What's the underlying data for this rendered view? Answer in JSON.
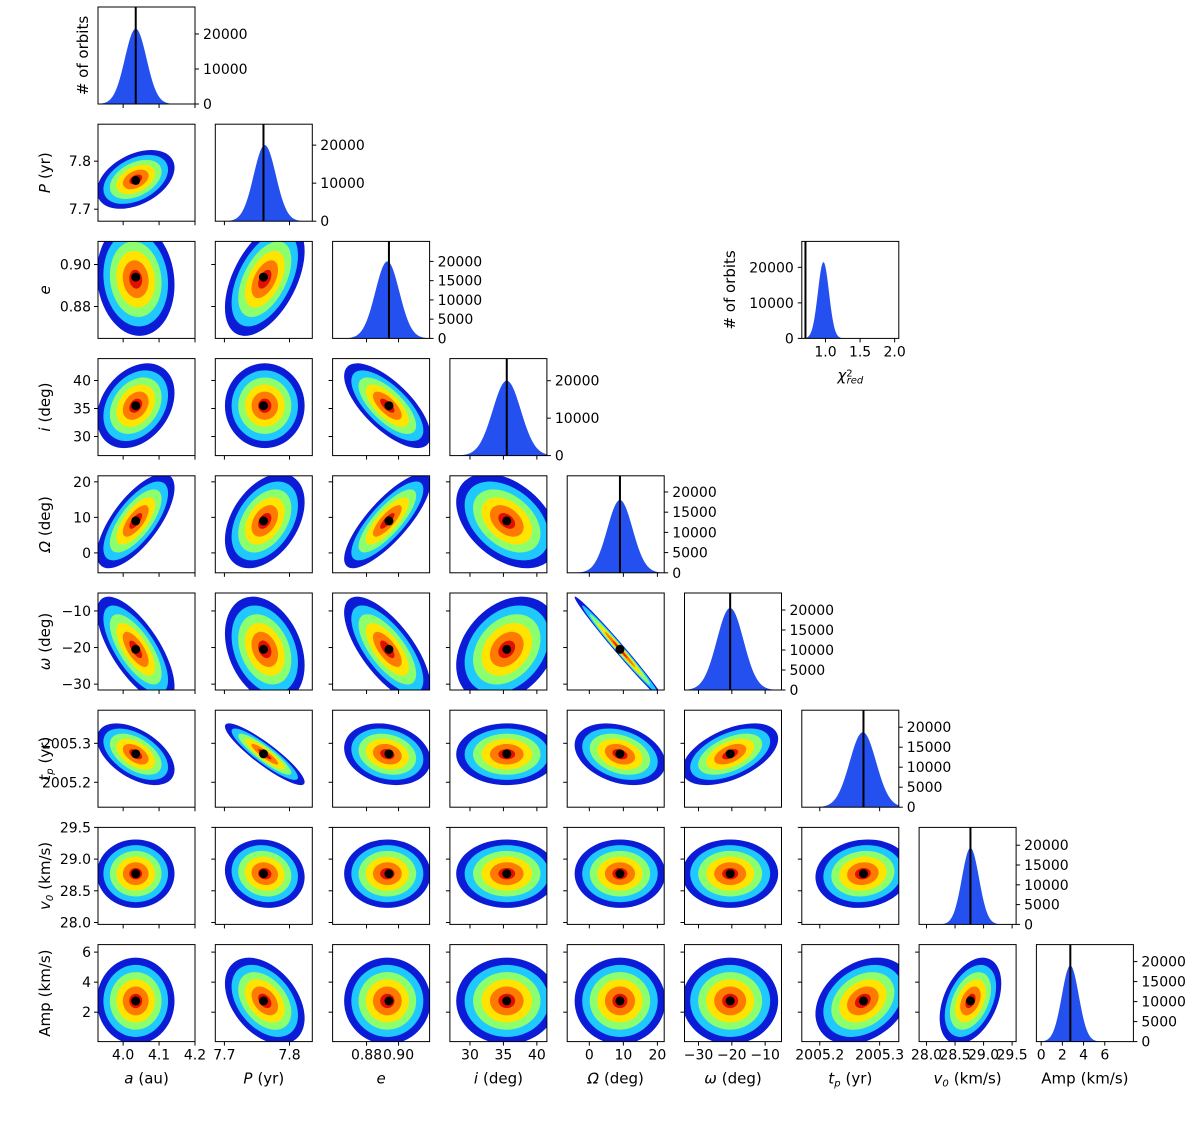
{
  "chart_data": {
    "type": "corner",
    "hist_ylabel": "# of orbits",
    "params": [
      {
        "symbol": "a",
        "unit": "(au)",
        "xlim": [
          3.93,
          4.2
        ],
        "ticks": [
          {
            "value": 4.0,
            "label": "4.0"
          },
          4.1,
          4.2
        ],
        "mean": 4.035,
        "std": 0.03,
        "best": 4.035,
        "peak": 21500,
        "hist_ylim": [
          0,
          27700
        ],
        "hist_yticks": [
          0,
          10000,
          20000
        ]
      },
      {
        "symbol": "P",
        "unit": "(yr)",
        "xlim": [
          7.686,
          7.835
        ],
        "ylim": [
          7.675,
          7.877
        ],
        "ticks": [
          7.7,
          7.8
        ],
        "mean": 7.762,
        "std": 0.017,
        "best": 7.76,
        "peak": 20000,
        "hist_ylim": [
          0,
          25500
        ],
        "hist_yticks": [
          0,
          10000,
          20000
        ]
      },
      {
        "symbol": "e",
        "xlim": [
          0.8588,
          0.9194
        ],
        "ylim": [
          0.8648,
          0.911
        ],
        "ticks": [
          0.88,
          {
            "value": 0.9,
            "label": "0.90"
          }
        ],
        "mean": 0.893,
        "std": 0.0075,
        "best": 0.894,
        "peak": 20000,
        "hist_ylim": [
          0,
          25200
        ],
        "hist_yticks": [
          0,
          5000,
          10000,
          15000,
          20000
        ]
      },
      {
        "symbol": "i",
        "unit": "(deg)",
        "xlim": [
          27.0,
          41.5
        ],
        "ylim": [
          26.6,
          43.9
        ],
        "ticks": [
          30,
          35,
          40
        ],
        "mean": 35.5,
        "std": 2.1,
        "best": 35.5,
        "peak": 20000,
        "hist_ylim": [
          0,
          25900
        ],
        "hist_yticks": [
          0,
          10000,
          20000
        ]
      },
      {
        "symbol": "Ω",
        "unit": "(deg)",
        "xlim": [
          -6.5,
          22
        ],
        "ylim": [
          -5.6,
          21.7
        ],
        "ticks": [
          0,
          10,
          20
        ],
        "mean": 9,
        "std": 3.7,
        "best": 9,
        "peak": 18000,
        "hist_ylim": [
          0,
          24000
        ],
        "hist_yticks": [
          0,
          5000,
          10000,
          15000,
          20000
        ]
      },
      {
        "symbol": "ω",
        "unit": "(deg)",
        "xlim": [
          -34.2,
          -5.1
        ],
        "ylim": [
          -31.6,
          -5.1
        ],
        "ticks": [
          {
            "value": -30,
            "label": "−30"
          },
          {
            "value": -20,
            "label": "−20"
          },
          {
            "value": -10,
            "label": "−10"
          }
        ],
        "mean": -20.5,
        "std": 4,
        "best": -20.5,
        "peak": 20500,
        "hist_ylim": [
          0,
          24250
        ],
        "hist_yticks": [
          0,
          5000,
          10000,
          15000,
          20000
        ]
      },
      {
        "symbol": "t",
        "sub": "p",
        "unit": "(yr)",
        "xlim": [
          2005.17,
          2005.332
        ],
        "ylim": [
          2005.136,
          2005.385
        ],
        "ticks": [
          2005.2,
          2005.3
        ],
        "mean": 2005.272,
        "std": 0.022,
        "best": 2005.273,
        "peak": 18750,
        "hist_ylim": [
          0,
          24250
        ],
        "hist_yticks": [
          0,
          5000,
          10000,
          15000,
          20000
        ]
      },
      {
        "symbol": "v",
        "sub": "0",
        "unit": "(km/s)",
        "xlim": [
          27.87,
          29.57
        ],
        "ylim": [
          27.97,
          29.5
        ],
        "ticks": [
          {
            "value": 28.0,
            "label": "28.0"
          },
          28.5,
          {
            "value": 29.0,
            "label": "29.0"
          },
          29.5
        ],
        "mean": 28.77,
        "std": 0.15,
        "best": 28.77,
        "peak": 19300,
        "hist_ylim": [
          0,
          24500
        ],
        "hist_yticks": [
          0,
          5000,
          10000,
          15000,
          20000
        ]
      },
      {
        "symbol": "Amp",
        "plain": true,
        "unit": "(km/s)",
        "xlim": [
          -0.45,
          8.7
        ],
        "ylim": [
          0.04,
          6.5
        ],
        "ticks": [
          0,
          2,
          4,
          6
        ],
        "mean": 2.75,
        "std": 0.8,
        "best": 2.75,
        "peak": 19000,
        "hist_ylim": [
          0,
          24250
        ],
        "hist_yticks": [
          0,
          5000,
          10000,
          15000,
          20000
        ]
      }
    ],
    "correlation": [
      [
        0.4
      ],
      [
        -0.1,
        0.5
      ],
      [
        0.3,
        0.0,
        -0.7
      ],
      [
        0.7,
        0.4,
        0.8,
        -0.4
      ],
      [
        -0.7,
        -0.3,
        -0.7,
        0.3,
        -0.99
      ],
      [
        -0.5,
        -0.9,
        -0.2,
        0.0,
        -0.3,
        0.5
      ],
      [
        0.0,
        -0.1,
        0.0,
        0.0,
        0.0,
        0.0,
        0.1
      ],
      [
        0.0,
        -0.4,
        0.0,
        0.0,
        0.0,
        0.0,
        0.3,
        0.4
      ]
    ],
    "chi2": {
      "symbol": "χ",
      "sup": "2",
      "sub": "red",
      "ylabel": "# of orbits",
      "xlim": [
        0.657,
        2.06
      ],
      "ticks": [
        {
          "value": 1.0,
          "label": "1.0"
        },
        1.5,
        {
          "value": 2.0,
          "label": "2.0"
        }
      ],
      "ylim": [
        0,
        27300
      ],
      "yticks": [
        0,
        10000,
        20000
      ],
      "mean": 0.97,
      "std": 0.08,
      "peak": 21500,
      "best": 0.71
    }
  }
}
